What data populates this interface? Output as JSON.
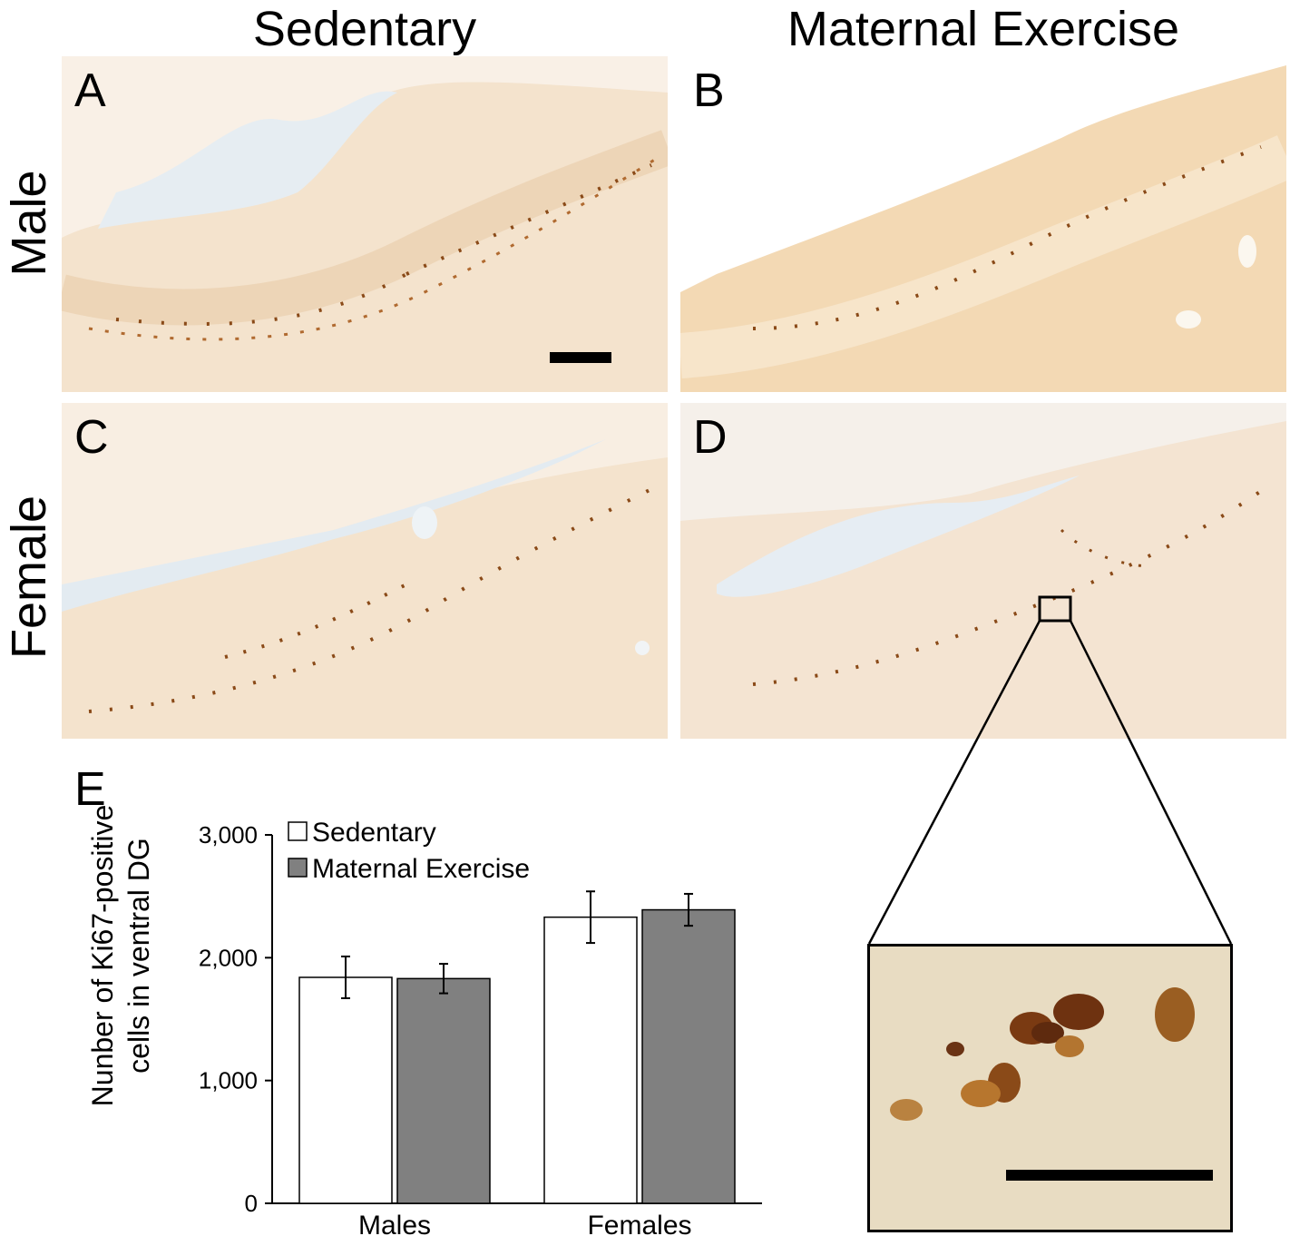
{
  "columns": {
    "left": "Sedentary",
    "right": "Maternal Exercise"
  },
  "rows": {
    "top": "Male",
    "bottom": "Female"
  },
  "panels": {
    "a": "A",
    "b": "B",
    "c": "C",
    "d": "D",
    "e": "E"
  },
  "colors": {
    "tissue": "#f3e0c8",
    "stain": "#8a4a18",
    "ventricle": "#e8eef2",
    "exercise_bar": "#808080"
  },
  "chart_data": {
    "type": "bar",
    "categories": [
      "Males",
      "Females"
    ],
    "series": [
      {
        "name": "Sedentary",
        "values": [
          1840,
          2330
        ],
        "error": [
          170,
          210
        ],
        "color": "#ffffff"
      },
      {
        "name": "Maternal Exercise",
        "values": [
          1830,
          2390
        ],
        "error": [
          120,
          130
        ],
        "color": "#808080"
      }
    ],
    "ylabel_line1": "Nunber of Ki67-positive",
    "ylabel_line2": "cells in ventral DG",
    "ylim": [
      0,
      3000
    ],
    "yticks": [
      0,
      1000,
      2000,
      3000
    ],
    "ytick_labels": [
      "0",
      "1,000",
      "2,000",
      "3,000"
    ],
    "legend_position": "top-left"
  }
}
